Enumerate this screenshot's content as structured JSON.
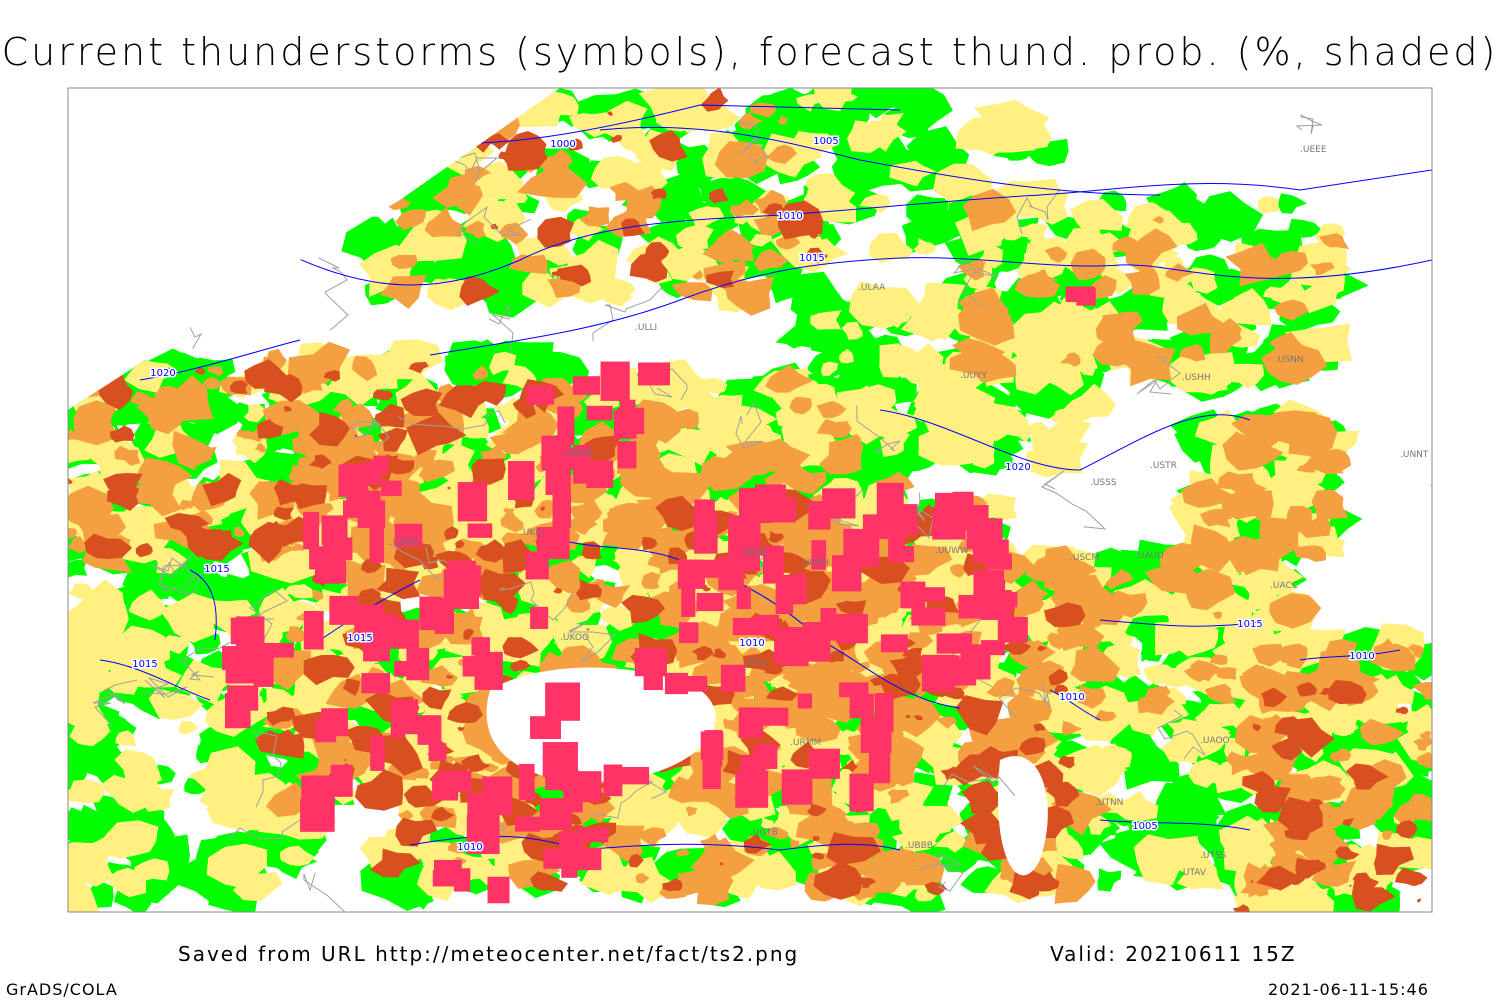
{
  "title": "Current thunderstorms (symbols), forecast thund. prob. (%, shaded)",
  "footer": {
    "saved": "Saved from URL http://meteocenter.net/fact/ts2.png",
    "valid": "Valid: 20210611 15Z",
    "credit": "GrADS/COLA",
    "timestamp": "2021-06-11-15:46"
  },
  "colors": {
    "prob_low": "#00ff00",
    "prob_mid": "#fff080",
    "prob_high": "#f4a040",
    "prob_very_high": "#d85020",
    "thunderstorm_symbols": "#ff3366",
    "isobars": "#0000ff",
    "borders": "#a0a0a0"
  },
  "isobar_labels": [
    "1000",
    "1005",
    "1010",
    "1015",
    "1020"
  ],
  "station_labels": [
    "UMMS",
    "UKLL",
    "UKKK",
    "UKBB",
    "UKOO",
    "UKHH",
    "UUWW",
    "URSS",
    "URMM",
    "UGTB",
    "UBBB",
    "UTAV",
    "UTSS",
    "UTNN",
    "UAOO",
    "UACC",
    "UAUU",
    "USCM",
    "USSS",
    "USTR",
    "UNNT",
    "UNBB",
    "ULAA",
    "ULLI",
    "UUYY",
    "USHH",
    "USNN",
    "UEEE"
  ]
}
